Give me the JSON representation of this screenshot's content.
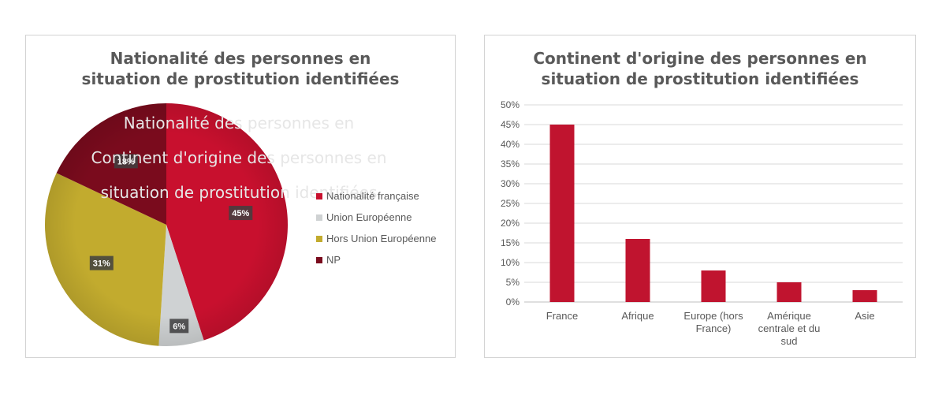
{
  "colors": {
    "francaise": "#c8102e",
    "ue": "#cfd2d3",
    "hors_ue": "#c2ab2e",
    "np": "#7a0b1d",
    "bar": "#c0142f",
    "text": "#595959",
    "grid": "#d9d9d9"
  },
  "ghost_text": {
    "line1": "Nationalité des personnes en",
    "line2": "Continent d'origine des personnes en",
    "line3": "situation de prostitution identifiées"
  },
  "chart_data": [
    {
      "type": "pie",
      "title": "Nationalité des personnes en situation de prostitution identifiées",
      "title_lines": [
        "Nationalité des personnes en",
        "situation de prostitution identifiées"
      ],
      "slices": [
        {
          "label": "Nationalité française",
          "value": 45,
          "display": "45%",
          "color": "#c8102e"
        },
        {
          "label": "Union Européenne",
          "value": 6,
          "display": "6%",
          "color": "#cfd2d3"
        },
        {
          "label": "Hors Union Européenne",
          "value": 31,
          "display": "31%",
          "color": "#c2ab2e"
        },
        {
          "label": "NP",
          "value": 18,
          "display": "18%",
          "color": "#7a0b1d"
        }
      ],
      "legend_position": "right"
    },
    {
      "type": "bar",
      "title": "Continent d'origine des personnes en situation de prostitution identifiées",
      "title_lines": [
        "Continent d'origine des personnes en",
        "situation de prostitution identifiées"
      ],
      "categories": [
        "France",
        "Afrique",
        "Europe (hors France)",
        "Amérique centrale et du sud",
        "Asie"
      ],
      "category_lines": [
        [
          "France"
        ],
        [
          "Afrique"
        ],
        [
          "Europe (hors",
          "France)"
        ],
        [
          "Amérique",
          "centrale et du",
          "sud"
        ],
        [
          "Asie"
        ]
      ],
      "values": [
        45,
        16,
        8,
        5,
        3
      ],
      "ylim": [
        0,
        50
      ],
      "yticks": [
        0,
        5,
        10,
        15,
        20,
        25,
        30,
        35,
        40,
        45,
        50
      ],
      "ytick_labels": [
        "0%",
        "5%",
        "10%",
        "15%",
        "20%",
        "25%",
        "30%",
        "35%",
        "40%",
        "45%",
        "50%"
      ],
      "grid": true,
      "xlabel": "",
      "ylabel": ""
    }
  ]
}
